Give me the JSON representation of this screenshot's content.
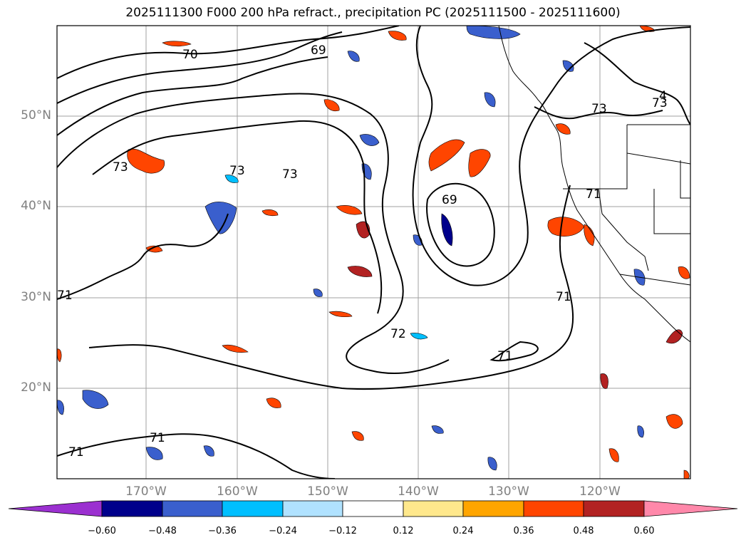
{
  "title": "2025111300 F000 200 hPa refract., precipitation PC (2025111500 - 2025111600)",
  "map": {
    "lat_labels": [
      "50°N",
      "40°N",
      "30°N",
      "20°N"
    ],
    "lon_labels": [
      "170°W",
      "160°W",
      "150°W",
      "140°W",
      "130°W",
      "120°W"
    ],
    "contour_labels": [
      "70",
      "69",
      "73",
      "73",
      "73",
      "73",
      "69",
      "71",
      "72",
      "71",
      "71",
      "71",
      "71",
      "71",
      "73",
      "4"
    ]
  },
  "colorbar": {
    "ticks": [
      "−0.60",
      "−0.48",
      "−0.36",
      "−0.24",
      "−0.12",
      "0.12",
      "0.24",
      "0.36",
      "0.48",
      "0.60"
    ],
    "colors": [
      "#9b30d0",
      "#00008b",
      "#3a5fcd",
      "#00bfff",
      "#b0e2ff",
      "#ffffff",
      "#ffe88c",
      "#ffa500",
      "#ff4500",
      "#b22222",
      "#ff88aa"
    ]
  }
}
